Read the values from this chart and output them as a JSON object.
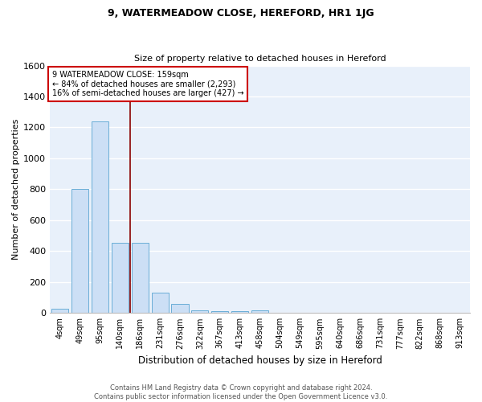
{
  "title": "9, WATERMEADOW CLOSE, HEREFORD, HR1 1JG",
  "subtitle": "Size of property relative to detached houses in Hereford",
  "xlabel": "Distribution of detached houses by size in Hereford",
  "ylabel": "Number of detached properties",
  "categories": [
    "4sqm",
    "49sqm",
    "95sqm",
    "140sqm",
    "186sqm",
    "231sqm",
    "276sqm",
    "322sqm",
    "367sqm",
    "413sqm",
    "458sqm",
    "504sqm",
    "549sqm",
    "595sqm",
    "640sqm",
    "686sqm",
    "731sqm",
    "777sqm",
    "822sqm",
    "868sqm",
    "913sqm"
  ],
  "values": [
    25,
    800,
    1240,
    455,
    455,
    130,
    60,
    18,
    12,
    12,
    15,
    0,
    0,
    0,
    0,
    0,
    0,
    0,
    0,
    0,
    0
  ],
  "bar_color": "#ccdff5",
  "bar_edge_color": "#6aaed6",
  "bg_color": "#e8f0fa",
  "grid_color": "#ffffff",
  "vline_x": 3.5,
  "vline_color": "#8b0000",
  "annotation_text": "9 WATERMEADOW CLOSE: 159sqm\n← 84% of detached houses are smaller (2,293)\n16% of semi-detached houses are larger (427) →",
  "annotation_box_color": "#ffffff",
  "annotation_box_edge": "#cc0000",
  "footnote": "Contains HM Land Registry data © Crown copyright and database right 2024.\nContains public sector information licensed under the Open Government Licence v3.0.",
  "ylim": [
    0,
    1600
  ],
  "yticks": [
    0,
    200,
    400,
    600,
    800,
    1000,
    1200,
    1400,
    1600
  ],
  "title_fontsize": 9,
  "subtitle_fontsize": 8,
  "xlabel_fontsize": 8.5,
  "ylabel_fontsize": 8,
  "xtick_fontsize": 7,
  "ytick_fontsize": 8,
  "footnote_fontsize": 6
}
